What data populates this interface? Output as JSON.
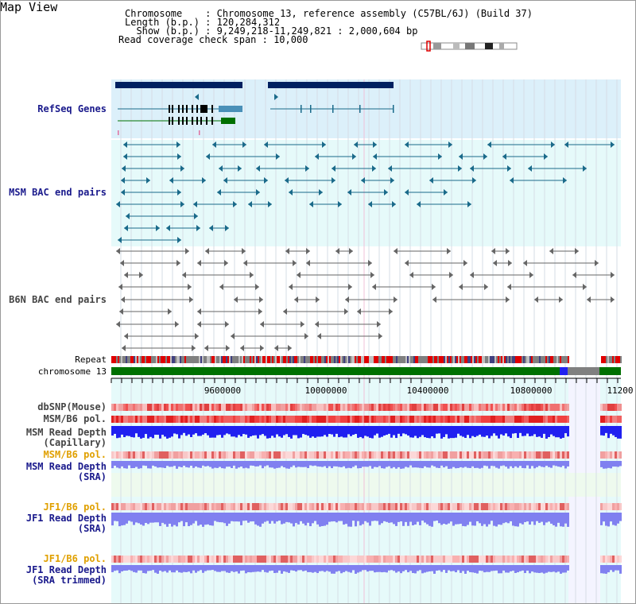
{
  "app_title": "Map View",
  "info": {
    "chromosome_line": "Chromosome    : Chromosome 13, reference assembly (C57BL/6J) (Build 37)",
    "length_line": "Length (b.p.) : 120,284,312",
    "show_line": "  Show (b.p.) : 9,249,218-11,249,821 : 2,000,604 bp",
    "span_line": "Read coverage check span : 10,000"
  },
  "tracks": {
    "refseq": "RefSeq Genes",
    "msm_bac": "MSM BAC end pairs",
    "b6n_bac": "B6N BAC end pairs",
    "repeat": "Repeat",
    "chromosome": "chromosome 13",
    "dbsnp": "dbSNP(Mouse)",
    "msm_pol": "MSM/B6 pol.",
    "msm_depth_cap_1": "MSM Read Depth",
    "msm_depth_cap_2": "(Capillary)",
    "msm_pol_sra": "MSM/B6 pol.",
    "msm_depth_sra_1": "MSM Read Depth",
    "msm_depth_sra_2": "(SRA)",
    "jf1_pol": "JF1/B6 pol.",
    "jf1_depth_1": "JF1 Read Depth",
    "jf1_depth_2": "(SRA)",
    "jf1_pol_trim": "JF1/B6 pol.",
    "jf1_depth_trim_1": "JF1 Read Depth",
    "jf1_depth_trim_2": "(SRA trimmed)"
  },
  "axis": {
    "ticks": [
      "9600000",
      "10000000",
      "10400000",
      "10800000",
      "11200"
    ]
  },
  "colors": {
    "refseq_bg": "#dcf0fa",
    "bac_bg": "#e6fafa",
    "gene_dark": "#002060",
    "gene_line": "#1a6a8a",
    "chrom_green": "#007000",
    "depth_blue": "#2020f0",
    "depth_light": "#8080f0"
  }
}
